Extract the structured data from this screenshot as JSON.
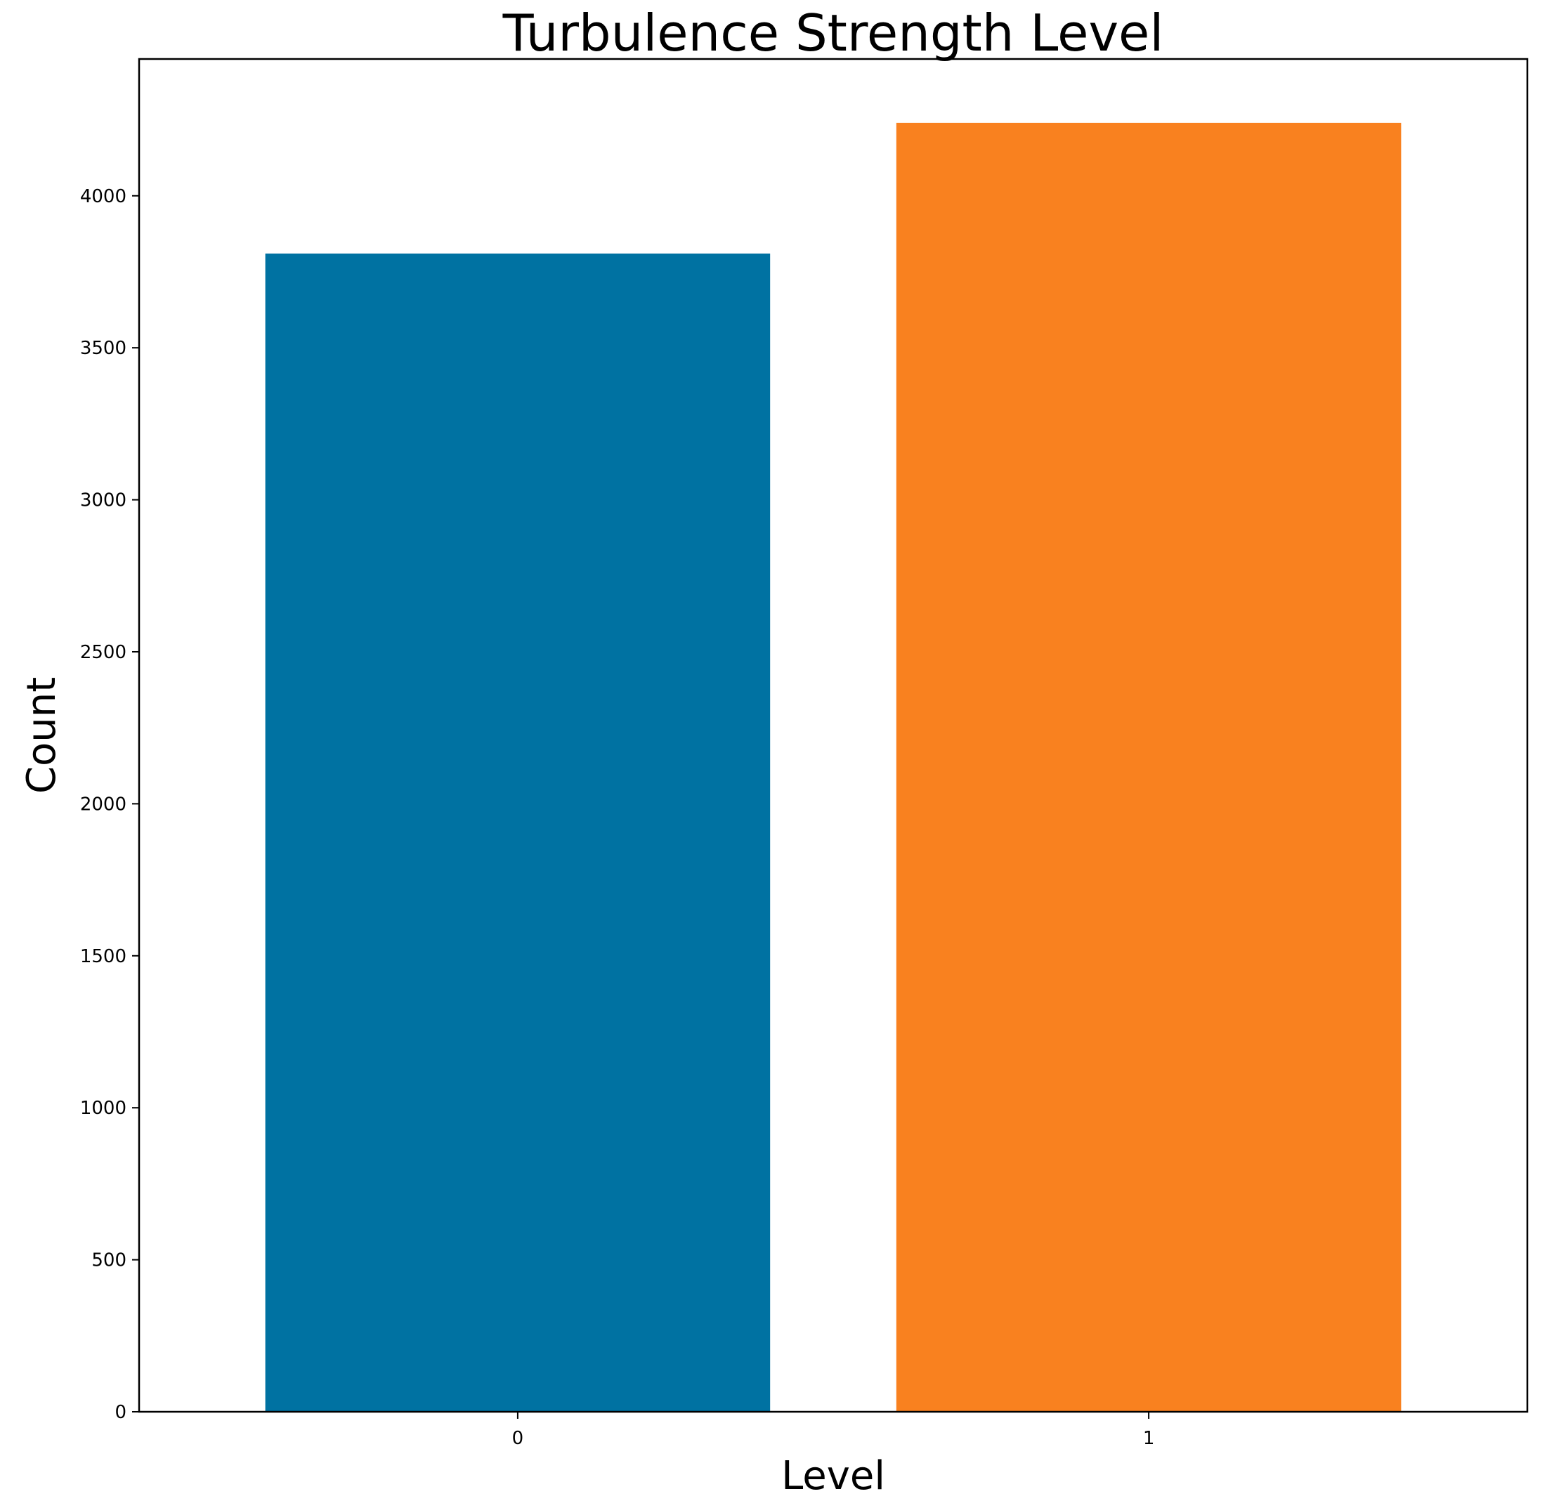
{
  "chart_data": {
    "type": "bar",
    "title": "Turbulence Strength Level",
    "xlabel": "Level",
    "ylabel": "Count",
    "categories": [
      "0",
      "1"
    ],
    "values": [
      3810,
      4240
    ],
    "bar_colors": [
      "#0072A2",
      "#F9811F"
    ],
    "ylim": [
      0,
      4450
    ],
    "yticks": [
      0,
      500,
      1000,
      1500,
      2000,
      2500,
      3000,
      3500,
      4000
    ],
    "ytick_labels": [
      "0",
      "500",
      "1000",
      "1500",
      "2000",
      "2500",
      "3000",
      "3500",
      "4000"
    ],
    "grid": false,
    "legend": "none"
  }
}
